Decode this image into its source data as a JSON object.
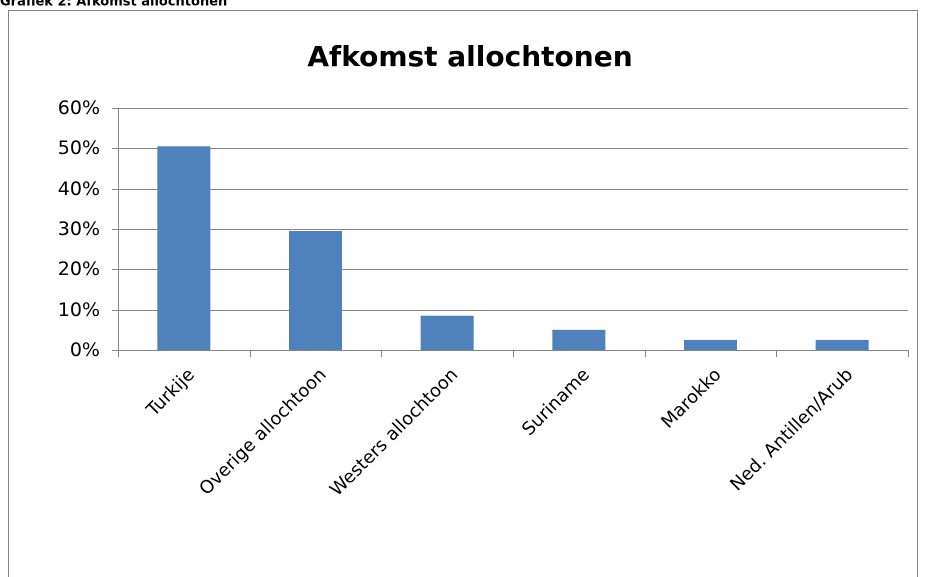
{
  "caption": "Grafiek 2: Afkomst allochtonen",
  "chart_data": {
    "type": "bar",
    "title": "Afkomst allochtonen",
    "categories": [
      "Turkije",
      "Overige allochtoon",
      "Westers allochtoon",
      "Suriname",
      "Marokko",
      "Ned. Antillen/Arub"
    ],
    "values": [
      50.5,
      29.5,
      8.5,
      5,
      2.5,
      2.5
    ],
    "color": "#4f81bd",
    "ylim": [
      0,
      60
    ],
    "yticks": [
      {
        "value": 0,
        "label": "0%"
      },
      {
        "value": 10,
        "label": "10%"
      },
      {
        "value": 20,
        "label": "20%"
      },
      {
        "value": 30,
        "label": "30%"
      },
      {
        "value": 40,
        "label": "40%"
      },
      {
        "value": 50,
        "label": "50%"
      },
      {
        "value": 60,
        "label": "60%"
      }
    ],
    "grid": true
  }
}
